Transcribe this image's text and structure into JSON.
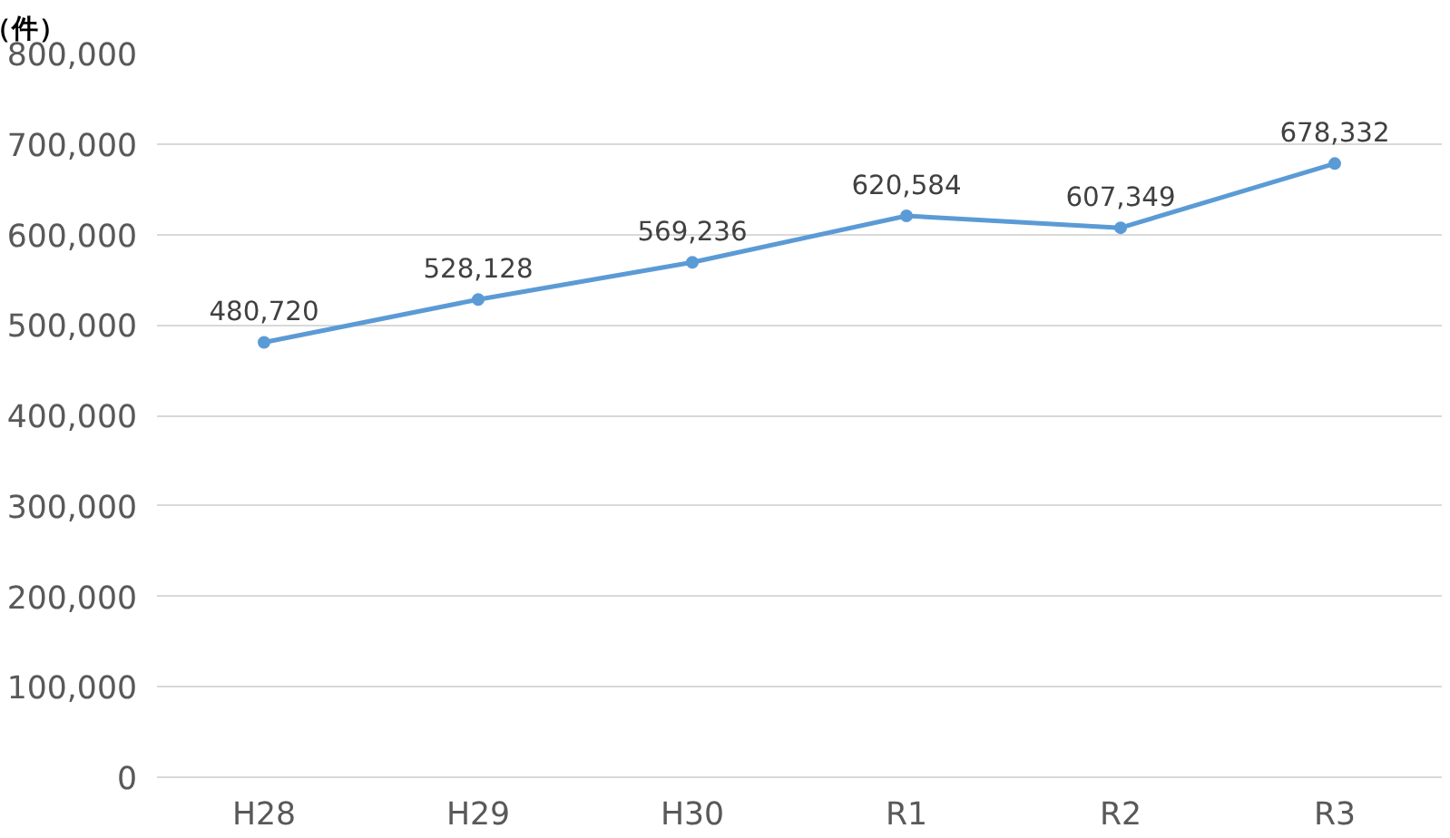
{
  "chart_data": {
    "type": "line",
    "ylabel": "（件）",
    "categories": [
      "H28",
      "H29",
      "H30",
      "R1",
      "R2",
      "R3"
    ],
    "series": [
      {
        "color": "#5b9bd5",
        "values": [
          480720,
          528128,
          569236,
          620584,
          607349,
          678332
        ],
        "value_labels": [
          "480,720",
          "528,128",
          "569,236",
          "620,584",
          "607,349",
          "678,332"
        ]
      }
    ],
    "ylim": [
      0,
      800000
    ],
    "yticks": [
      {
        "value": 0,
        "label": "0"
      },
      {
        "value": 100000,
        "label": "100,000"
      },
      {
        "value": 200000,
        "label": "200,000"
      },
      {
        "value": 300000,
        "label": "300,000"
      },
      {
        "value": 400000,
        "label": "400,000"
      },
      {
        "value": 500000,
        "label": "500,000"
      },
      {
        "value": 600000,
        "label": "600,000"
      },
      {
        "value": 700000,
        "label": "700,000"
      },
      {
        "value": 800000,
        "label": "800,000"
      }
    ],
    "grid": "y",
    "marker": "circle",
    "line_style": "solid"
  }
}
